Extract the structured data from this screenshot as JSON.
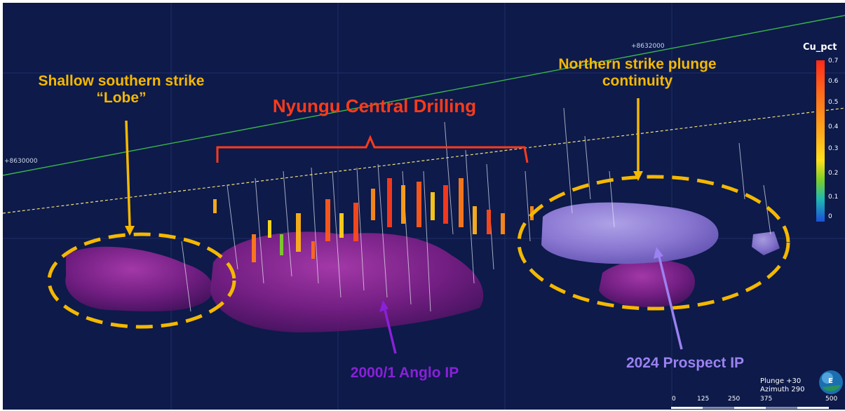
{
  "annotations": {
    "south_lobe": "Shallow southern strike “Lobe”",
    "central_drilling": "Nyungu Central Drilling",
    "north_strike": "Northern strike plunge continuity",
    "anglo_ip": "2000/1 Anglo IP",
    "prospect_ip": "2024 Prospect IP"
  },
  "grid_coords": {
    "left": "+8630000",
    "top": "+8632000"
  },
  "legend": {
    "title": "Cu_pct",
    "ticks": [
      "0.7",
      "0.6",
      "0.5",
      "0.4",
      "0.3",
      "0.2",
      "0.1",
      "0"
    ]
  },
  "view": {
    "plunge": "Plunge +30",
    "azimuth": "Azimuth 290",
    "compass_letter": "E"
  },
  "scale_bar": {
    "ticks": [
      "0",
      "125",
      "250",
      "375",
      "500"
    ]
  },
  "colors": {
    "background": "#0d1a4a",
    "annotation_yellow": "#f5b800",
    "annotation_red": "#ff3a1a",
    "anglo_purple": "#8a20d8",
    "prospect_lavender": "#9a82f0",
    "strike_line": "#39b54a"
  }
}
